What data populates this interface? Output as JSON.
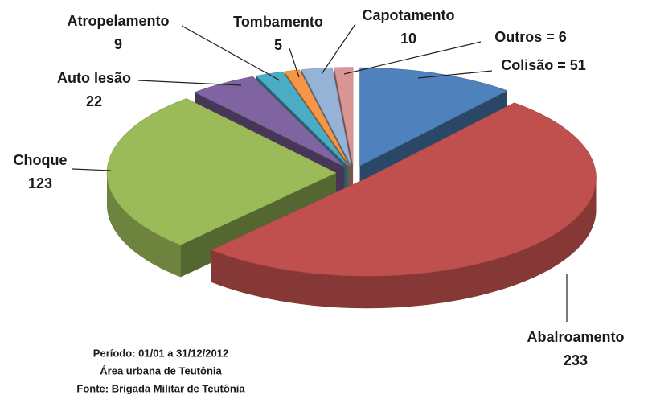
{
  "chart_data": {
    "type": "pie3d",
    "categories": [
      "Colisão",
      "Abalroamento",
      "Choque",
      "Auto lesão",
      "Atropelamento",
      "Tombamento",
      "Capotamento",
      "Outros"
    ],
    "values": [
      51,
      233,
      123,
      22,
      9,
      5,
      10,
      6
    ],
    "value_labels": [
      "Colisão = 51",
      null,
      null,
      null,
      null,
      null,
      null,
      "Outros = 6"
    ],
    "colors": [
      "#4f81bd",
      "#c0504d",
      "#9bbb59",
      "#8064a2",
      "#4bacc6",
      "#f79646",
      "#95b3d7",
      "#d99694"
    ],
    "notes": [
      "Período: 01/01 a 31/12/2012",
      "Área urbana de Teutônia",
      "Fonte: Brigada Militar de Teutônia"
    ]
  }
}
